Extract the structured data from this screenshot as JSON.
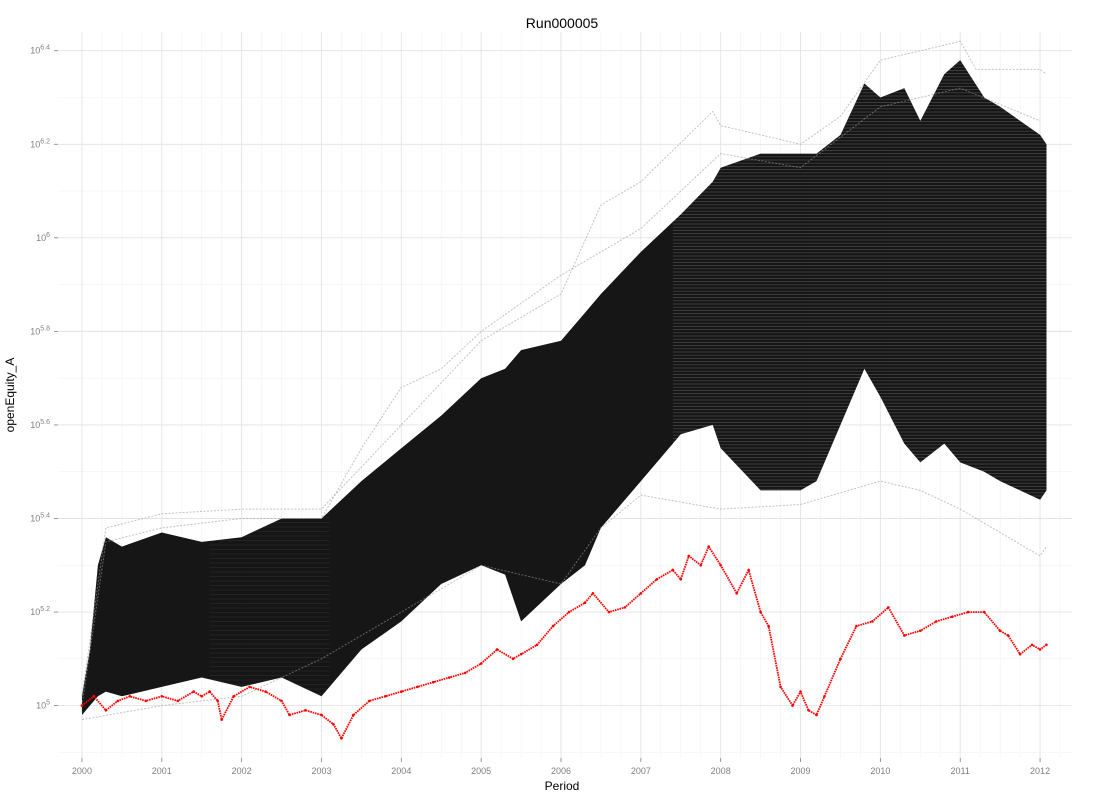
{
  "chart_data": {
    "type": "line",
    "title": "Run000005",
    "xlabel": "Period",
    "ylabel": "openEquity_A",
    "xlim": [
      2000.0,
      2012.08
    ],
    "ylim_log10": [
      4.9,
      5.45
    ],
    "y_scale": "log10",
    "grid": true,
    "legend": "none",
    "x_ticks": [
      {
        "value": 2000,
        "label": "2000"
      },
      {
        "value": 2001,
        "label": "2001"
      },
      {
        "value": 2002,
        "label": "2002"
      },
      {
        "value": 2003,
        "label": "2003"
      },
      {
        "value": 2004,
        "label": "2004"
      },
      {
        "value": 2005,
        "label": "2005"
      },
      {
        "value": 2006,
        "label": "2006"
      },
      {
        "value": 2007,
        "label": "2007"
      },
      {
        "value": 2008,
        "label": "2008"
      },
      {
        "value": 2009,
        "label": "2009"
      },
      {
        "value": 2010,
        "label": "2010"
      },
      {
        "value": 2011,
        "label": "2011"
      },
      {
        "value": 2012,
        "label": "2012"
      }
    ],
    "y_ticks": [
      {
        "log10": 5.0,
        "base": "10",
        "exp": "5"
      },
      {
        "log10": 5.2,
        "base": "10",
        "exp": "5.2"
      },
      {
        "log10": 5.4,
        "base": "10",
        "exp": "5.4"
      },
      {
        "log10": 5.6,
        "base": "10",
        "exp": "5.6"
      },
      {
        "log10": 5.8,
        "base": "10",
        "exp": "5.8"
      },
      {
        "log10": 6.0,
        "base": "10",
        "exp": "6"
      },
      {
        "log10": 6.2,
        "base": "10",
        "exp": "6.2"
      },
      {
        "log10": 6.4,
        "base": "10",
        "exp": "6.4"
      }
    ],
    "simulation_band": {
      "color": "#0a0a0a",
      "x": [
        2000.0,
        2000.1,
        2000.2,
        2000.3,
        2000.5,
        2001.0,
        2001.5,
        2002.0,
        2002.5,
        2003.0,
        2003.5,
        2004.0,
        2004.5,
        2005.0,
        2005.3,
        2005.5,
        2006.0,
        2006.3,
        2006.5,
        2007.0,
        2007.5,
        2007.9,
        2008.0,
        2008.5,
        2009.0,
        2009.2,
        2009.5,
        2009.8,
        2010.0,
        2010.3,
        2010.5,
        2010.8,
        2011.0,
        2011.3,
        2011.5,
        2012.0,
        2012.08
      ],
      "upper": [
        5.02,
        5.12,
        5.3,
        5.36,
        5.34,
        5.37,
        5.35,
        5.36,
        5.4,
        5.4,
        5.48,
        5.55,
        5.62,
        5.7,
        5.72,
        5.76,
        5.78,
        5.84,
        5.88,
        5.97,
        6.05,
        6.12,
        6.15,
        6.18,
        6.18,
        6.18,
        6.22,
        6.33,
        6.3,
        6.32,
        6.25,
        6.35,
        6.38,
        6.3,
        6.28,
        6.22,
        6.2
      ],
      "lower": [
        4.98,
        5.0,
        5.02,
        5.03,
        5.02,
        5.04,
        5.06,
        5.04,
        5.06,
        5.02,
        5.12,
        5.18,
        5.26,
        5.3,
        5.28,
        5.18,
        5.26,
        5.3,
        5.38,
        5.48,
        5.58,
        5.6,
        5.55,
        5.46,
        5.46,
        5.48,
        5.6,
        5.72,
        5.66,
        5.56,
        5.52,
        5.56,
        5.52,
        5.5,
        5.48,
        5.44,
        5.46
      ]
    },
    "outer_traces": {
      "color": "#9a9a9a",
      "series": [
        {
          "x": [
            2000.0,
            2000.3,
            2001.0,
            2002.0,
            2003.0,
            2004.0,
            2005.0,
            2006.0,
            2006.5,
            2007.0,
            2007.9,
            2008.0,
            2009.0,
            2009.5,
            2010.0,
            2011.0,
            2011.2,
            2012.0,
            2012.08
          ],
          "y": [
            5.02,
            5.38,
            5.41,
            5.42,
            5.42,
            5.6,
            5.78,
            5.88,
            6.07,
            6.12,
            6.27,
            6.24,
            6.2,
            6.26,
            6.38,
            6.42,
            6.36,
            6.36,
            6.35
          ]
        },
        {
          "x": [
            2000.0,
            2000.3,
            2001.0,
            2002.0,
            2003.0,
            2003.5,
            2004.0,
            2004.5,
            2005.0,
            2006.0,
            2007.0,
            2008.0,
            2009.0,
            2010.0,
            2011.0,
            2012.0
          ],
          "y": [
            5.0,
            5.35,
            5.38,
            5.4,
            5.4,
            5.55,
            5.68,
            5.72,
            5.8,
            5.92,
            6.02,
            6.18,
            6.15,
            6.28,
            6.32,
            6.25
          ]
        },
        {
          "x": [
            2000.0,
            2001.0,
            2002.0,
            2003.0,
            2004.0,
            2005.0,
            2006.0,
            2006.5,
            2007.0,
            2008.0,
            2009.0,
            2010.0,
            2010.5,
            2011.0,
            2012.0,
            2012.08
          ],
          "y": [
            4.97,
            5.0,
            5.02,
            5.1,
            5.2,
            5.3,
            5.26,
            5.38,
            5.45,
            5.42,
            5.43,
            5.48,
            5.46,
            5.42,
            5.32,
            5.34
          ]
        }
      ]
    },
    "highlight_series": {
      "color": "#ff0000",
      "x": [
        2000.0,
        2000.15,
        2000.3,
        2000.45,
        2000.6,
        2000.8,
        2001.0,
        2001.2,
        2001.4,
        2001.5,
        2001.6,
        2001.7,
        2001.75,
        2001.9,
        2002.1,
        2002.3,
        2002.5,
        2002.6,
        2002.8,
        2003.0,
        2003.15,
        2003.25,
        2003.4,
        2003.6,
        2003.8,
        2004.0,
        2004.2,
        2004.4,
        2004.6,
        2004.8,
        2005.0,
        2005.2,
        2005.4,
        2005.5,
        2005.7,
        2005.9,
        2006.1,
        2006.3,
        2006.4,
        2006.6,
        2006.8,
        2007.0,
        2007.2,
        2007.4,
        2007.5,
        2007.6,
        2007.75,
        2007.85,
        2008.0,
        2008.2,
        2008.35,
        2008.5,
        2008.6,
        2008.75,
        2008.9,
        2009.0,
        2009.1,
        2009.2,
        2009.3,
        2009.5,
        2009.7,
        2009.9,
        2010.1,
        2010.3,
        2010.5,
        2010.7,
        2010.9,
        2011.1,
        2011.3,
        2011.5,
        2011.6,
        2011.75,
        2011.9,
        2012.0,
        2012.08
      ],
      "y": [
        5.0,
        5.02,
        4.99,
        5.01,
        5.02,
        5.01,
        5.02,
        5.01,
        5.03,
        5.02,
        5.03,
        5.01,
        4.97,
        5.02,
        5.04,
        5.03,
        5.01,
        4.98,
        4.99,
        4.98,
        4.96,
        4.93,
        4.98,
        5.01,
        5.02,
        5.03,
        5.04,
        5.05,
        5.06,
        5.07,
        5.09,
        5.12,
        5.1,
        5.11,
        5.13,
        5.17,
        5.2,
        5.22,
        5.24,
        5.2,
        5.21,
        5.24,
        5.27,
        5.29,
        5.27,
        5.32,
        5.3,
        5.34,
        5.3,
        5.24,
        5.29,
        5.2,
        5.17,
        5.04,
        5.0,
        5.03,
        4.99,
        4.98,
        5.02,
        5.1,
        5.17,
        5.18,
        5.21,
        5.15,
        5.16,
        5.18,
        5.19,
        5.2,
        5.2,
        5.16,
        5.15,
        5.11,
        5.13,
        5.12,
        5.13
      ]
    }
  }
}
